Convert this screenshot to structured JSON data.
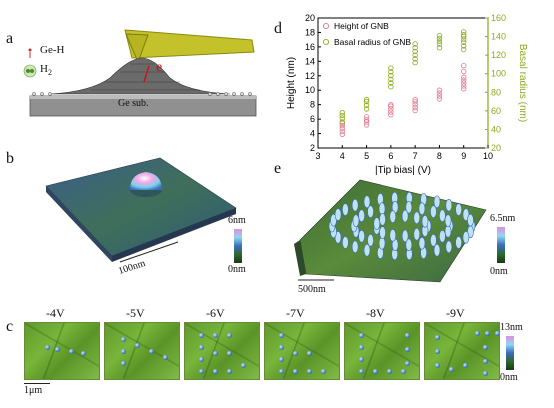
{
  "panels": {
    "a": {
      "label": "a",
      "legend_gh": "Ge-H",
      "legend_h2": "H",
      "legend_h2_sub": "2",
      "substrate": "Ge sub.",
      "e_label": "e"
    },
    "b": {
      "label": "b",
      "scale_bar": "100nm",
      "colorbar_max": "6nm",
      "colorbar_min": "0nm"
    },
    "c": {
      "label": "c",
      "voltages": [
        "-4V",
        "-5V",
        "-6V",
        "-7V",
        "-8V",
        "-9V"
      ],
      "scale_bar": "1μm",
      "colorbar_max": "13nm",
      "colorbar_min": "0nm"
    },
    "d": {
      "label": "d"
    },
    "e": {
      "label": "e",
      "scale_bar": "500nm",
      "colorbar_max": "6.5nm",
      "colorbar_min": "0nm"
    }
  },
  "colors": {
    "height_series": "#e07a8f",
    "radius_series": "#8aab1e",
    "surface_green": "#6aa832",
    "dome_blue": "#3a6cc0"
  },
  "chart_data": {
    "type": "scatter",
    "xlabel": "|Tip bias| (V)",
    "ylabel_left": "Height (nm)",
    "ylabel_right": "Basal radius (nm)",
    "xlim": [
      3,
      10
    ],
    "ylim_left": [
      2,
      20
    ],
    "ylim_right": [
      20,
      160
    ],
    "xticks": [
      "3",
      "4",
      "5",
      "6",
      "7",
      "8",
      "9",
      "10"
    ],
    "yticks_left": [
      "2",
      "4",
      "6",
      "8",
      "10",
      "12",
      "14",
      "16",
      "18",
      "20"
    ],
    "yticks_right": [
      "20",
      "40",
      "60",
      "80",
      "100",
      "120",
      "140",
      "160"
    ],
    "series": [
      {
        "name": "Height of GNB",
        "axis": "left",
        "x": [
          4,
          4,
          4,
          4,
          4,
          5,
          5,
          5,
          5,
          6,
          6,
          6,
          6,
          6,
          7,
          7,
          7,
          7,
          7,
          8,
          8,
          8,
          8,
          9,
          9,
          9,
          9,
          9,
          9,
          9
        ],
        "y": [
          3.9,
          4.3,
          4.7,
          5.1,
          5.4,
          5.2,
          5.6,
          5.9,
          6.3,
          6.6,
          7.0,
          7.4,
          7.8,
          8.0,
          7.2,
          7.6,
          8.0,
          8.4,
          8.7,
          8.8,
          9.2,
          9.6,
          10.0,
          10.2,
          10.6,
          11.0,
          11.4,
          11.8,
          12.6,
          13.4
        ]
      },
      {
        "name": "Basal radius of GNB",
        "axis": "right",
        "x": [
          4,
          4,
          4,
          4,
          5,
          5,
          5,
          5,
          6,
          6,
          6,
          6,
          6,
          6,
          7,
          7,
          7,
          7,
          7,
          7,
          8,
          8,
          8,
          8,
          8,
          9,
          9,
          9,
          9,
          9,
          9,
          9
        ],
        "y": [
          48,
          52,
          55,
          58,
          62,
          66,
          70,
          72,
          86,
          90,
          94,
          98,
          102,
          106,
          112,
          116,
          120,
          124,
          128,
          132,
          128,
          132,
          135,
          138,
          141,
          126,
          130,
          134,
          137,
          140,
          142,
          145
        ]
      }
    ]
  }
}
